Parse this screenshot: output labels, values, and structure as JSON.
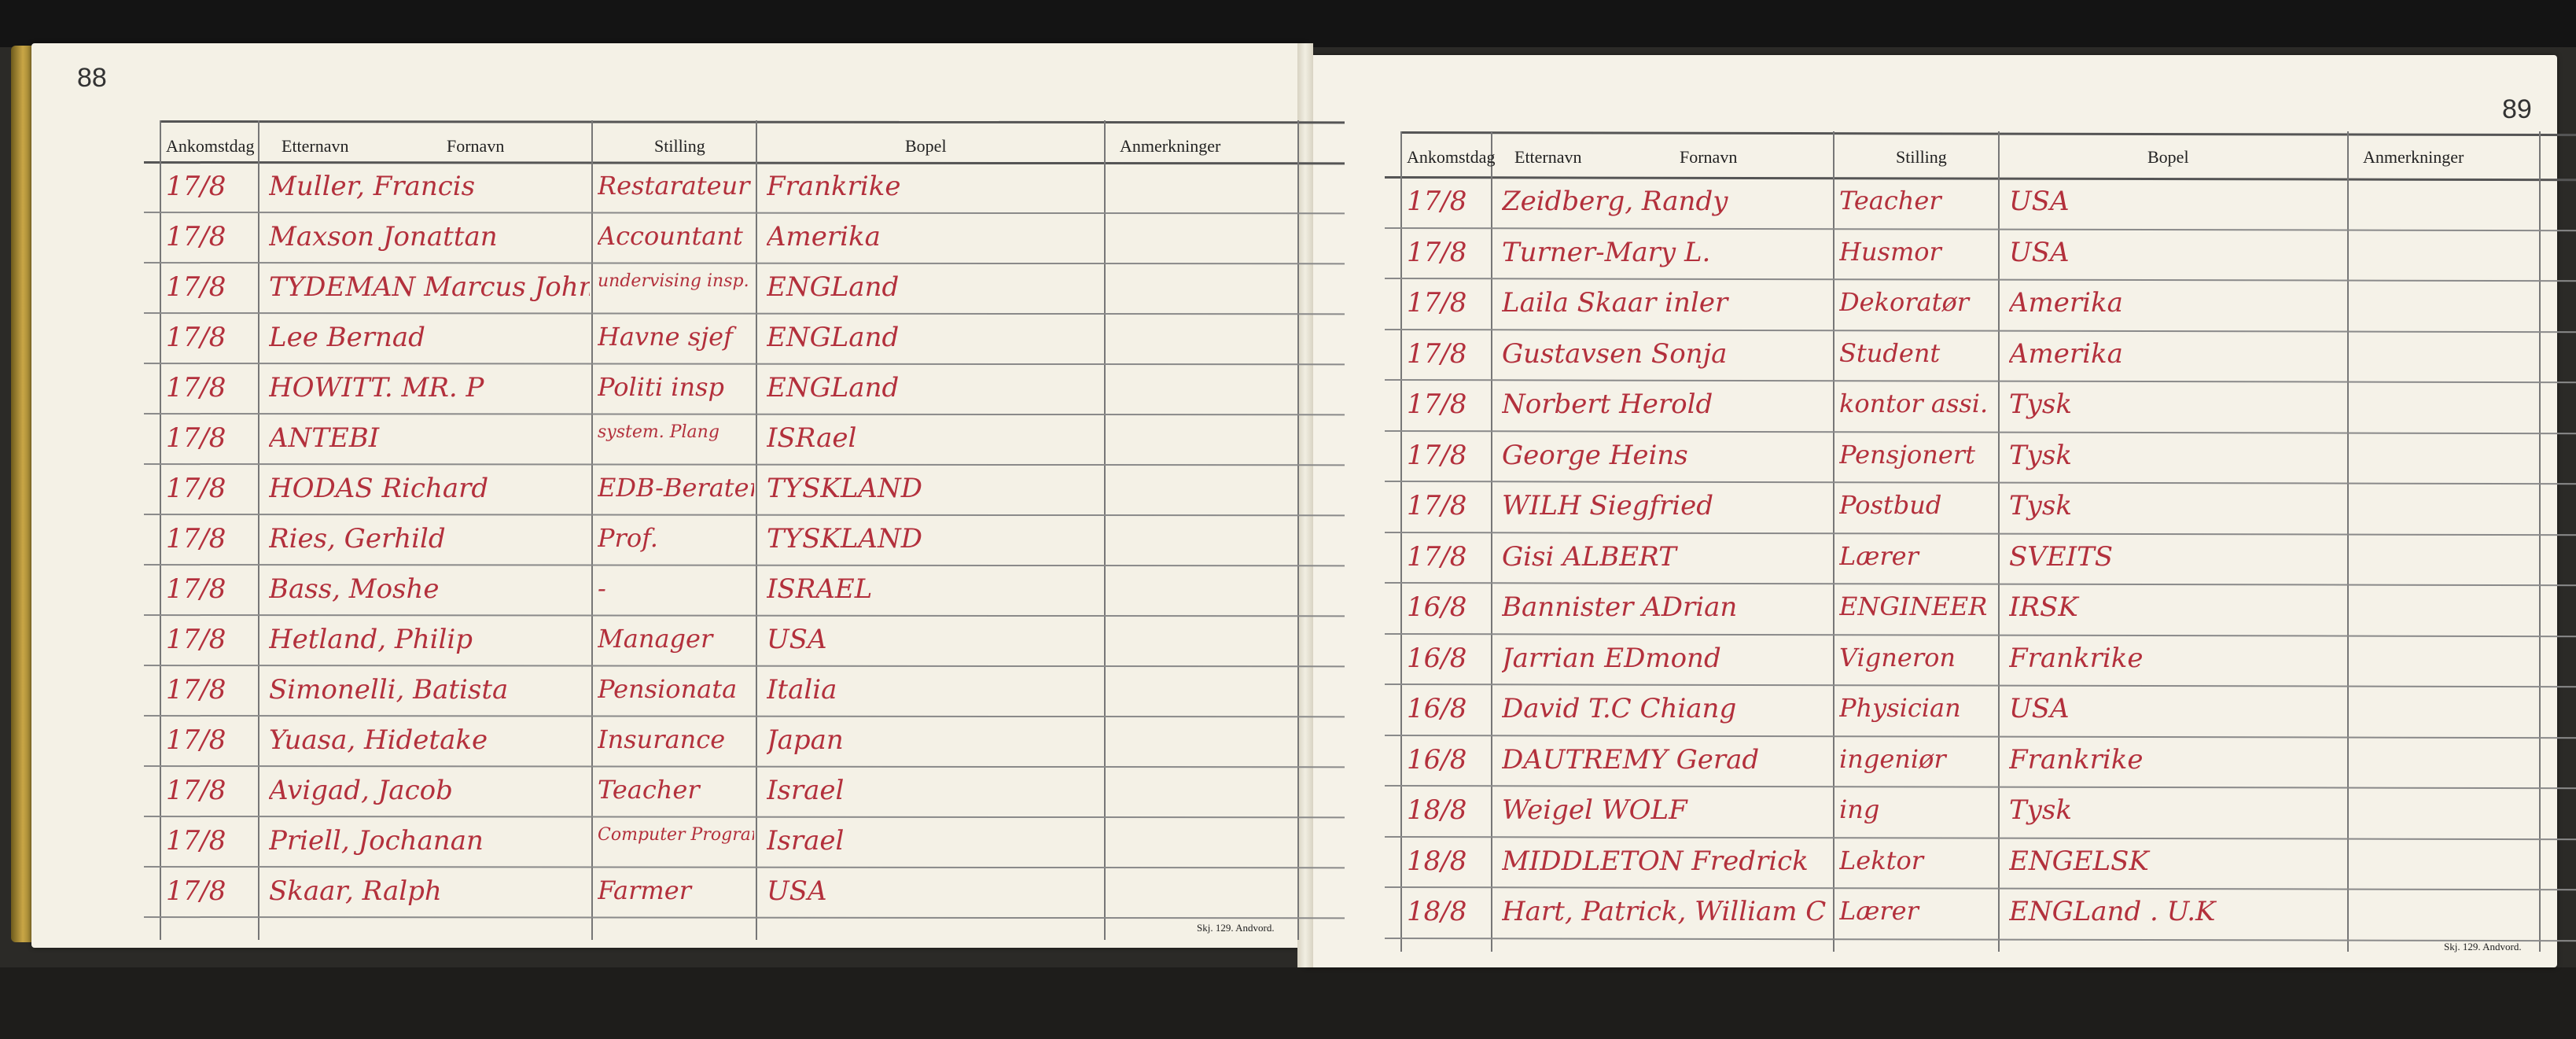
{
  "left_page": {
    "page_number": "88",
    "headers": [
      "Ankomstdag",
      "Etternavn",
      "Fornavn",
      "Stilling",
      "Bopel",
      "Anmerkninger"
    ],
    "footer": "Skj. 129. Andvord.",
    "rows": [
      {
        "date": "17/8",
        "name": "Muller, Francis",
        "occupation": "Restaratеur",
        "residence": "Frankrike"
      },
      {
        "date": "17/8",
        "name": "Maxson Jonattan",
        "occupation": "Accountant",
        "residence": "Amerika"
      },
      {
        "date": "17/8",
        "name": "TYDEMAN Marcus John",
        "occupation": "undervising insp.",
        "residence": "ENGLand"
      },
      {
        "date": "17/8",
        "name": "Lee Bernad",
        "occupation": "Havne sjef",
        "residence": "ENGLand"
      },
      {
        "date": "17/8",
        "name": "HOWITT. MR. P",
        "occupation": "Politi insp",
        "residence": "ENGLand"
      },
      {
        "date": "17/8",
        "name": "ANTEBI",
        "occupation": "system. Plang",
        "residence": "ISRael"
      },
      {
        "date": "17/8",
        "name": "HODAS Richard",
        "occupation": "EDB-Berater",
        "residence": "TYSKLAND"
      },
      {
        "date": "17/8",
        "name": "Ries, Gerhild",
        "occupation": "Prof.",
        "residence": "TYSKLAND"
      },
      {
        "date": "17/8",
        "name": "Bass, Moshe",
        "occupation": "-",
        "residence": "ISRAEL"
      },
      {
        "date": "17/8",
        "name": "Hetland, Philip",
        "occupation": "Manager",
        "residence": "USA"
      },
      {
        "date": "17/8",
        "name": "Simonelli, Batista",
        "occupation": "Pensionata",
        "residence": "Italia"
      },
      {
        "date": "17/8",
        "name": "Yuasa, Hidetake",
        "occupation": "Insurance",
        "residence": "Japan"
      },
      {
        "date": "17/8",
        "name": "Avigad, Jacob",
        "occupation": "Teacher",
        "residence": "Israel"
      },
      {
        "date": "17/8",
        "name": "Priell, Jochanan",
        "occupation": "Computer Programmer",
        "residence": "Israel"
      },
      {
        "date": "17/8",
        "name": "Skaar, Ralph",
        "occupation": "Farmer",
        "residence": "USA"
      }
    ]
  },
  "right_page": {
    "page_number": "89",
    "headers": [
      "Ankomstdag",
      "Etternavn",
      "Fornavn",
      "Stilling",
      "Bopel",
      "Anmerkninger"
    ],
    "footer": "Skj. 129. Andvord.",
    "rows": [
      {
        "date": "17/8",
        "name": "Zeidberg, Randy",
        "occupation": "Teacher",
        "residence": "USA"
      },
      {
        "date": "17/8",
        "name": "Turner-Mary L.",
        "occupation": "Husmor",
        "residence": "USA"
      },
      {
        "date": "17/8",
        "name": "Laila Skaar inler",
        "occupation": "Dekoratør",
        "residence": "Amerika"
      },
      {
        "date": "17/8",
        "name": "Gustavsen Sonja",
        "occupation": "Student",
        "residence": "Amerika"
      },
      {
        "date": "17/8",
        "name": "Norbert Herold",
        "occupation": "kontor assi.",
        "residence": "Tysk"
      },
      {
        "date": "17/8",
        "name": "George Heins",
        "occupation": "Pensjonert",
        "residence": "Tysk"
      },
      {
        "date": "17/8",
        "name": "WILH Siegfried",
        "occupation": "Postbud",
        "residence": "Tysk"
      },
      {
        "date": "17/8",
        "name": "Gisi ALBERT",
        "occupation": "Lærer",
        "residence": "SVEITS"
      },
      {
        "date": "16/8",
        "name": "Bannister ADrian",
        "occupation": "ENGINEER",
        "residence": "IRSK"
      },
      {
        "date": "16/8",
        "name": "Jarrian EDmond",
        "occupation": "Vigneron",
        "residence": "Frankrike"
      },
      {
        "date": "16/8",
        "name": "David T.C Chiang",
        "occupation": "Physician",
        "residence": "USA"
      },
      {
        "date": "16/8",
        "name": "DAUTREMY Gerad",
        "occupation": "ingeniør",
        "residence": "Frankrike"
      },
      {
        "date": "18/8",
        "name": "Weigel WOLF",
        "occupation": "ing",
        "residence": "Tysk"
      },
      {
        "date": "18/8",
        "name": "MIDDLETON Fredrick",
        "occupation": "Lektor",
        "residence": "ENGELSK"
      },
      {
        "date": "18/8",
        "name": "Hart, Patrick, William C",
        "occupation": "Lærer",
        "residence": "ENGLand . U.K"
      }
    ]
  },
  "colors": {
    "ink": "#b3303c",
    "paper": "#f4f1e6",
    "rule": "#555555"
  }
}
